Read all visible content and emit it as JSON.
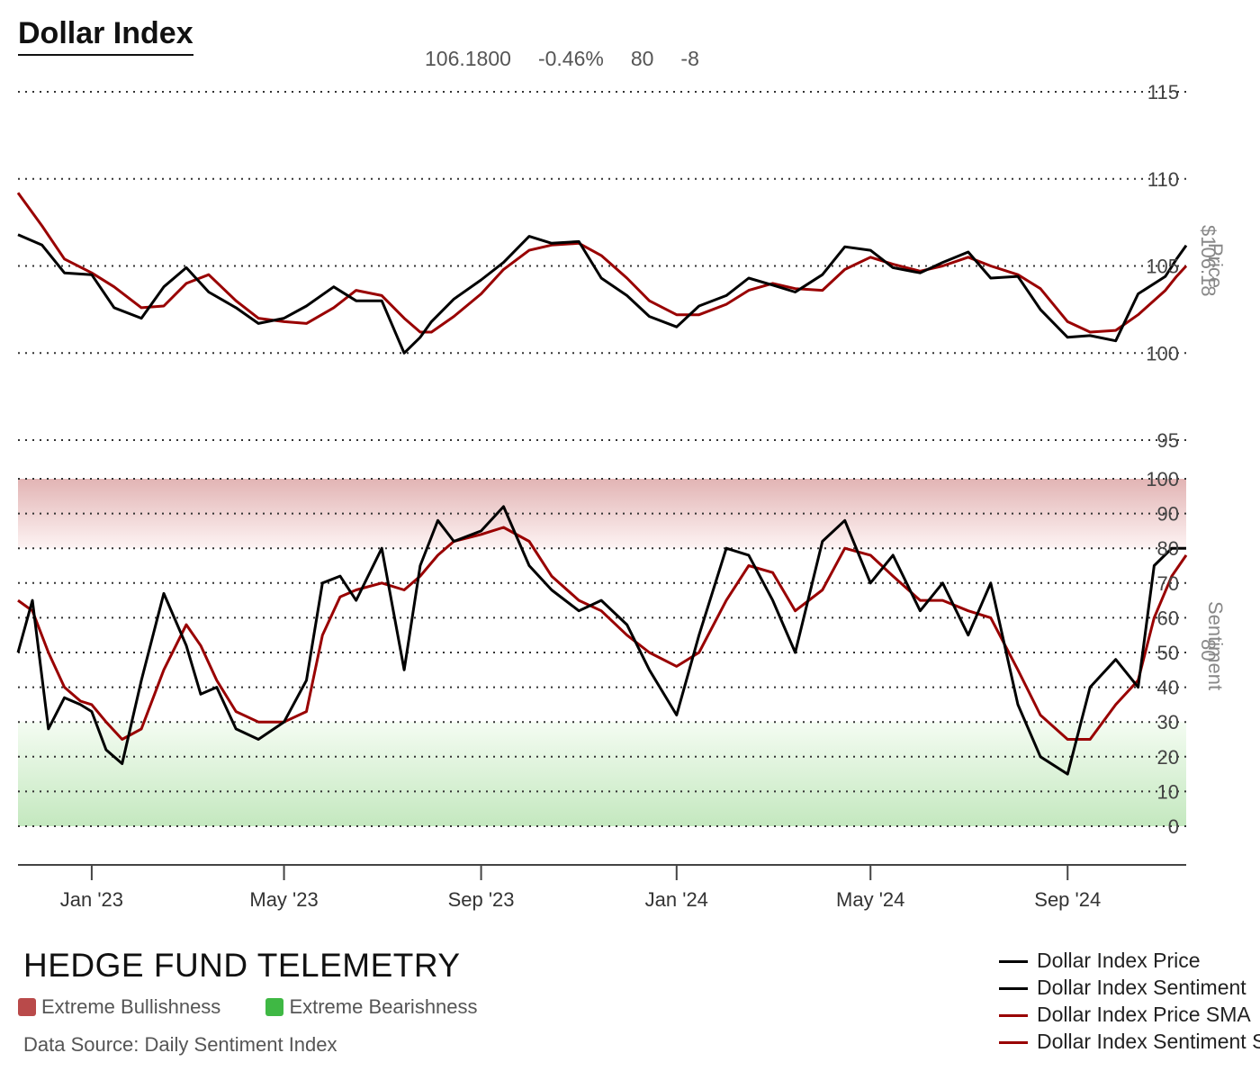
{
  "title": "Dollar Index",
  "header_stats": {
    "price": "106.1800",
    "change_pct": "-0.46%",
    "sentiment": "80",
    "sentiment_change": "-8"
  },
  "brand": "HEDGE FUND TELEMETRY",
  "zones": {
    "bull_label": "Extreme Bullishness",
    "bear_label": "Extreme Bearishness",
    "bull_color": "#b94a4a",
    "bear_color": "#3fb844"
  },
  "source": "Data Source: Daily Sentiment Index",
  "legend": [
    {
      "label": "Dollar Index Price",
      "color": "#000000"
    },
    {
      "label": "Dollar Index Sentiment",
      "color": "#000000"
    },
    {
      "label": "Dollar Index Price SMA",
      "color": "#990000"
    },
    {
      "label": "Dollar Index Sentiment SMA",
      "color": "#990000"
    }
  ],
  "chart_data": {
    "type": "line",
    "x_tick_labels": [
      "Jan '23",
      "May '23",
      "Sep '23",
      "Jan '24",
      "May '24",
      "Sep '24"
    ],
    "x_ticks": [
      "2023-01-01",
      "2023-05-01",
      "2023-09-01",
      "2024-01-01",
      "2024-05-01",
      "2024-09-01"
    ],
    "x_range": [
      "2022-11-16",
      "2024-11-14"
    ],
    "price_panel": {
      "ylabel": "Price",
      "current_label": "$106.18",
      "ylim": [
        95,
        115
      ],
      "y_ticks": [
        95,
        100,
        105,
        110,
        115
      ],
      "series": [
        {
          "name": "Dollar Index Price",
          "color": "#000000",
          "x": [
            "2022-11-16",
            "2022-12-01",
            "2022-12-15",
            "2023-01-01",
            "2023-01-15",
            "2023-02-01",
            "2023-02-15",
            "2023-03-01",
            "2023-03-15",
            "2023-04-01",
            "2023-04-15",
            "2023-05-01",
            "2023-05-15",
            "2023-06-01",
            "2023-06-15",
            "2023-07-01",
            "2023-07-15",
            "2023-07-25",
            "2023-08-01",
            "2023-08-15",
            "2023-09-01",
            "2023-09-15",
            "2023-10-01",
            "2023-10-15",
            "2023-11-01",
            "2023-11-15",
            "2023-12-01",
            "2023-12-15",
            "2024-01-01",
            "2024-01-15",
            "2024-02-01",
            "2024-02-15",
            "2024-03-01",
            "2024-03-15",
            "2024-04-01",
            "2024-04-15",
            "2024-05-01",
            "2024-05-15",
            "2024-06-01",
            "2024-06-15",
            "2024-07-01",
            "2024-07-15",
            "2024-08-01",
            "2024-08-15",
            "2024-09-01",
            "2024-09-15",
            "2024-10-01",
            "2024-10-15",
            "2024-11-01",
            "2024-11-08",
            "2024-11-14"
          ],
          "y": [
            106.8,
            106.2,
            104.6,
            104.5,
            102.6,
            102.0,
            103.8,
            104.9,
            103.5,
            102.6,
            101.7,
            102.0,
            102.7,
            103.8,
            103.0,
            103.0,
            100.0,
            100.9,
            101.8,
            103.1,
            104.2,
            105.2,
            106.7,
            106.3,
            106.4,
            104.3,
            103.3,
            102.1,
            101.5,
            102.7,
            103.3,
            104.3,
            103.9,
            103.5,
            104.5,
            106.1,
            105.9,
            104.9,
            104.6,
            105.2,
            105.8,
            104.3,
            104.4,
            102.5,
            100.9,
            101.0,
            100.7,
            103.4,
            104.4,
            105.4,
            106.18
          ]
        },
        {
          "name": "Dollar Index Price SMA",
          "color": "#990000",
          "x": [
            "2022-11-16",
            "2022-12-01",
            "2022-12-15",
            "2023-01-01",
            "2023-01-15",
            "2023-02-01",
            "2023-02-15",
            "2023-03-01",
            "2023-03-15",
            "2023-04-01",
            "2023-04-15",
            "2023-05-01",
            "2023-05-15",
            "2023-06-01",
            "2023-06-15",
            "2023-07-01",
            "2023-07-15",
            "2023-07-25",
            "2023-08-01",
            "2023-08-15",
            "2023-09-01",
            "2023-09-15",
            "2023-10-01",
            "2023-10-15",
            "2023-11-01",
            "2023-11-15",
            "2023-12-01",
            "2023-12-15",
            "2024-01-01",
            "2024-01-15",
            "2024-02-01",
            "2024-02-15",
            "2024-03-01",
            "2024-03-15",
            "2024-04-01",
            "2024-04-15",
            "2024-05-01",
            "2024-05-15",
            "2024-06-01",
            "2024-06-15",
            "2024-07-01",
            "2024-07-15",
            "2024-08-01",
            "2024-08-15",
            "2024-09-01",
            "2024-09-15",
            "2024-10-01",
            "2024-10-15",
            "2024-11-01",
            "2024-11-08",
            "2024-11-14"
          ],
          "y": [
            109.2,
            107.3,
            105.4,
            104.6,
            103.8,
            102.6,
            102.7,
            104.0,
            104.5,
            103.0,
            102.0,
            101.8,
            101.7,
            102.6,
            103.6,
            103.3,
            102.0,
            101.2,
            101.2,
            102.1,
            103.4,
            104.8,
            105.9,
            106.2,
            106.3,
            105.6,
            104.3,
            103.0,
            102.2,
            102.2,
            102.8,
            103.6,
            104.0,
            103.7,
            103.6,
            104.8,
            105.5,
            105.1,
            104.7,
            105.0,
            105.5,
            105.0,
            104.5,
            103.7,
            101.8,
            101.2,
            101.3,
            102.2,
            103.6,
            104.4,
            105.0
          ]
        }
      ]
    },
    "sentiment_panel": {
      "ylabel": "Sentiment",
      "current_label": "80",
      "ylim": [
        0,
        100
      ],
      "y_ticks": [
        0,
        10,
        20,
        30,
        40,
        50,
        60,
        70,
        80,
        90,
        100
      ],
      "extreme_bull_zone": [
        80,
        100
      ],
      "extreme_bear_zone": [
        0,
        30
      ],
      "series": [
        {
          "name": "Dollar Index Sentiment",
          "color": "#000000",
          "x": [
            "2022-11-16",
            "2022-11-25",
            "2022-12-05",
            "2022-12-15",
            "2022-12-25",
            "2023-01-01",
            "2023-01-10",
            "2023-01-20",
            "2023-02-01",
            "2023-02-15",
            "2023-03-01",
            "2023-03-10",
            "2023-03-20",
            "2023-04-01",
            "2023-04-15",
            "2023-05-01",
            "2023-05-15",
            "2023-05-25",
            "2023-06-05",
            "2023-06-15",
            "2023-07-01",
            "2023-07-15",
            "2023-07-25",
            "2023-08-05",
            "2023-08-15",
            "2023-09-01",
            "2023-09-15",
            "2023-10-01",
            "2023-10-15",
            "2023-11-01",
            "2023-11-15",
            "2023-12-01",
            "2023-12-15",
            "2024-01-01",
            "2024-01-15",
            "2024-02-01",
            "2024-02-15",
            "2024-03-01",
            "2024-03-15",
            "2024-04-01",
            "2024-04-15",
            "2024-05-01",
            "2024-05-15",
            "2024-06-01",
            "2024-06-15",
            "2024-07-01",
            "2024-07-15",
            "2024-08-01",
            "2024-08-15",
            "2024-09-01",
            "2024-09-15",
            "2024-10-01",
            "2024-10-15",
            "2024-10-25",
            "2024-11-05",
            "2024-11-14"
          ],
          "y": [
            50,
            65,
            28,
            37,
            35,
            33,
            22,
            18,
            42,
            67,
            52,
            38,
            40,
            28,
            25,
            30,
            42,
            70,
            72,
            65,
            80,
            45,
            75,
            88,
            82,
            85,
            92,
            75,
            68,
            62,
            65,
            58,
            45,
            32,
            55,
            80,
            78,
            65,
            50,
            82,
            88,
            70,
            78,
            62,
            70,
            55,
            70,
            35,
            20,
            15,
            40,
            48,
            40,
            75,
            80,
            80
          ]
        },
        {
          "name": "Dollar Index Sentiment SMA",
          "color": "#990000",
          "x": [
            "2022-11-16",
            "2022-11-25",
            "2022-12-05",
            "2022-12-15",
            "2022-12-25",
            "2023-01-01",
            "2023-01-10",
            "2023-01-20",
            "2023-02-01",
            "2023-02-15",
            "2023-03-01",
            "2023-03-10",
            "2023-03-20",
            "2023-04-01",
            "2023-04-15",
            "2023-05-01",
            "2023-05-15",
            "2023-05-25",
            "2023-06-05",
            "2023-06-15",
            "2023-07-01",
            "2023-07-15",
            "2023-07-25",
            "2023-08-05",
            "2023-08-15",
            "2023-09-01",
            "2023-09-15",
            "2023-10-01",
            "2023-10-15",
            "2023-11-01",
            "2023-11-15",
            "2023-12-01",
            "2023-12-15",
            "2024-01-01",
            "2024-01-15",
            "2024-02-01",
            "2024-02-15",
            "2024-03-01",
            "2024-03-15",
            "2024-04-01",
            "2024-04-15",
            "2024-05-01",
            "2024-05-15",
            "2024-06-01",
            "2024-06-15",
            "2024-07-01",
            "2024-07-15",
            "2024-08-01",
            "2024-08-15",
            "2024-09-01",
            "2024-09-15",
            "2024-10-01",
            "2024-10-15",
            "2024-10-25",
            "2024-11-05",
            "2024-11-14"
          ],
          "y": [
            65,
            62,
            50,
            40,
            36,
            35,
            30,
            25,
            28,
            45,
            58,
            52,
            42,
            33,
            30,
            30,
            33,
            55,
            66,
            68,
            70,
            68,
            72,
            78,
            82,
            84,
            86,
            82,
            72,
            65,
            62,
            55,
            50,
            46,
            50,
            65,
            75,
            73,
            62,
            68,
            80,
            78,
            72,
            65,
            65,
            62,
            60,
            45,
            32,
            25,
            25,
            35,
            42,
            60,
            72,
            78
          ]
        }
      ]
    }
  }
}
